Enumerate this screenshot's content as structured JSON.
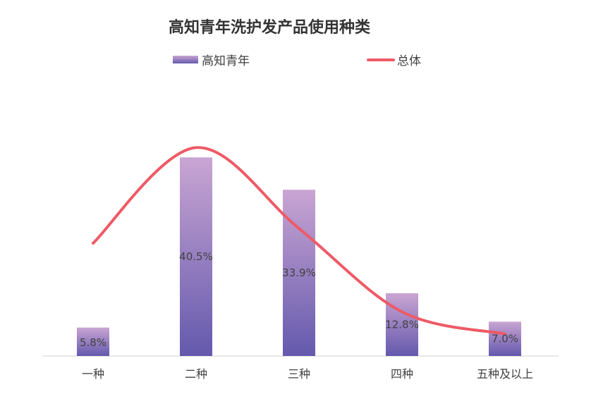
{
  "chart_data": {
    "type": "bar",
    "title": "高知青年洗护发产品使用种类",
    "categories": [
      "一种",
      "二种",
      "三种",
      "四种",
      "五种及以上"
    ],
    "series": [
      {
        "name": "高知青年",
        "type": "bar",
        "values": [
          5.8,
          40.5,
          33.9,
          12.8,
          7.0
        ],
        "value_labels": [
          "5.8%",
          "40.5%",
          "33.9%",
          "12.8%",
          "7.0%"
        ]
      },
      {
        "name": "总体",
        "type": "line",
        "smooth": true,
        "values": [
          23.0,
          42.5,
          26.0,
          9.0,
          4.5
        ]
      }
    ],
    "legend_position": "top",
    "grid": false,
    "ylim": [
      0,
      46
    ],
    "colors": {
      "bar_top": "#c9a5d3",
      "bar_bottom": "#6459ad",
      "line": "#ee5a66",
      "axis": "#d0d0d0",
      "text": "#404040"
    }
  }
}
